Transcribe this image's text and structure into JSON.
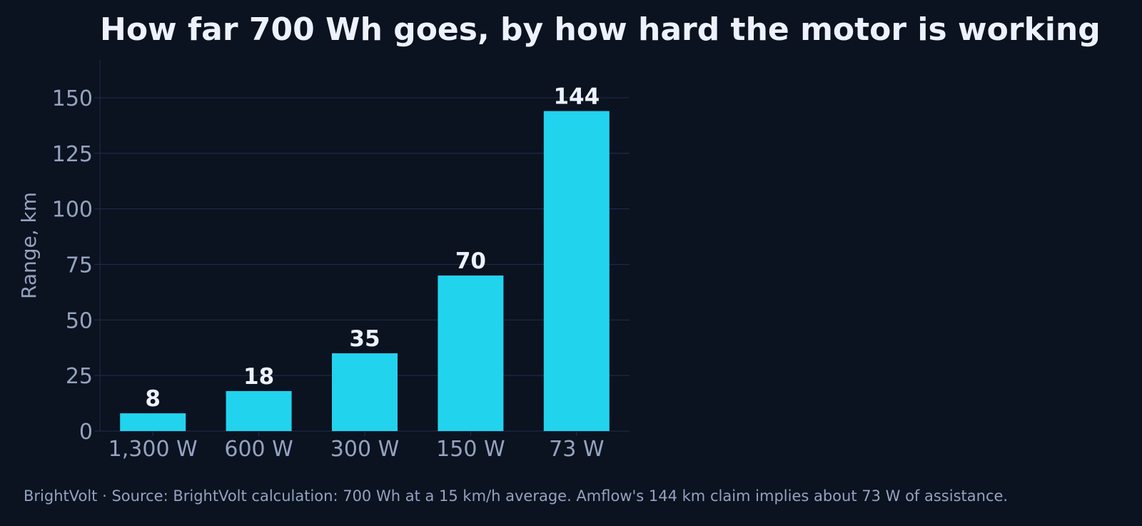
{
  "chart_data": {
    "type": "bar",
    "title": "How far 700 Wh goes, by how hard the motor is working",
    "xlabel": "",
    "ylabel": "Range, km",
    "categories": [
      "1,300 W",
      "600 W",
      "300 W",
      "150 W",
      "73 W"
    ],
    "values": [
      8,
      18,
      35,
      70,
      144
    ],
    "value_labels": [
      "8",
      "18",
      "35",
      "70",
      "144"
    ],
    "ylim": [
      0,
      167
    ],
    "yticks": [
      0,
      25,
      50,
      75,
      100,
      125,
      150
    ],
    "grid": true,
    "legend": "none"
  },
  "footer": {
    "brand": "BrightVolt",
    "separator": "·",
    "source": "Source: BrightVolt calculation: 700 Wh at a 15 km/h average. Amflow's 144 km claim implies about 73 W of assistance."
  },
  "colors": {
    "background": "#0b1220",
    "bar": "#22d3ee",
    "grid": "#1e2b44",
    "text": "#eef2ff",
    "muted_text": "#94a3bf"
  }
}
